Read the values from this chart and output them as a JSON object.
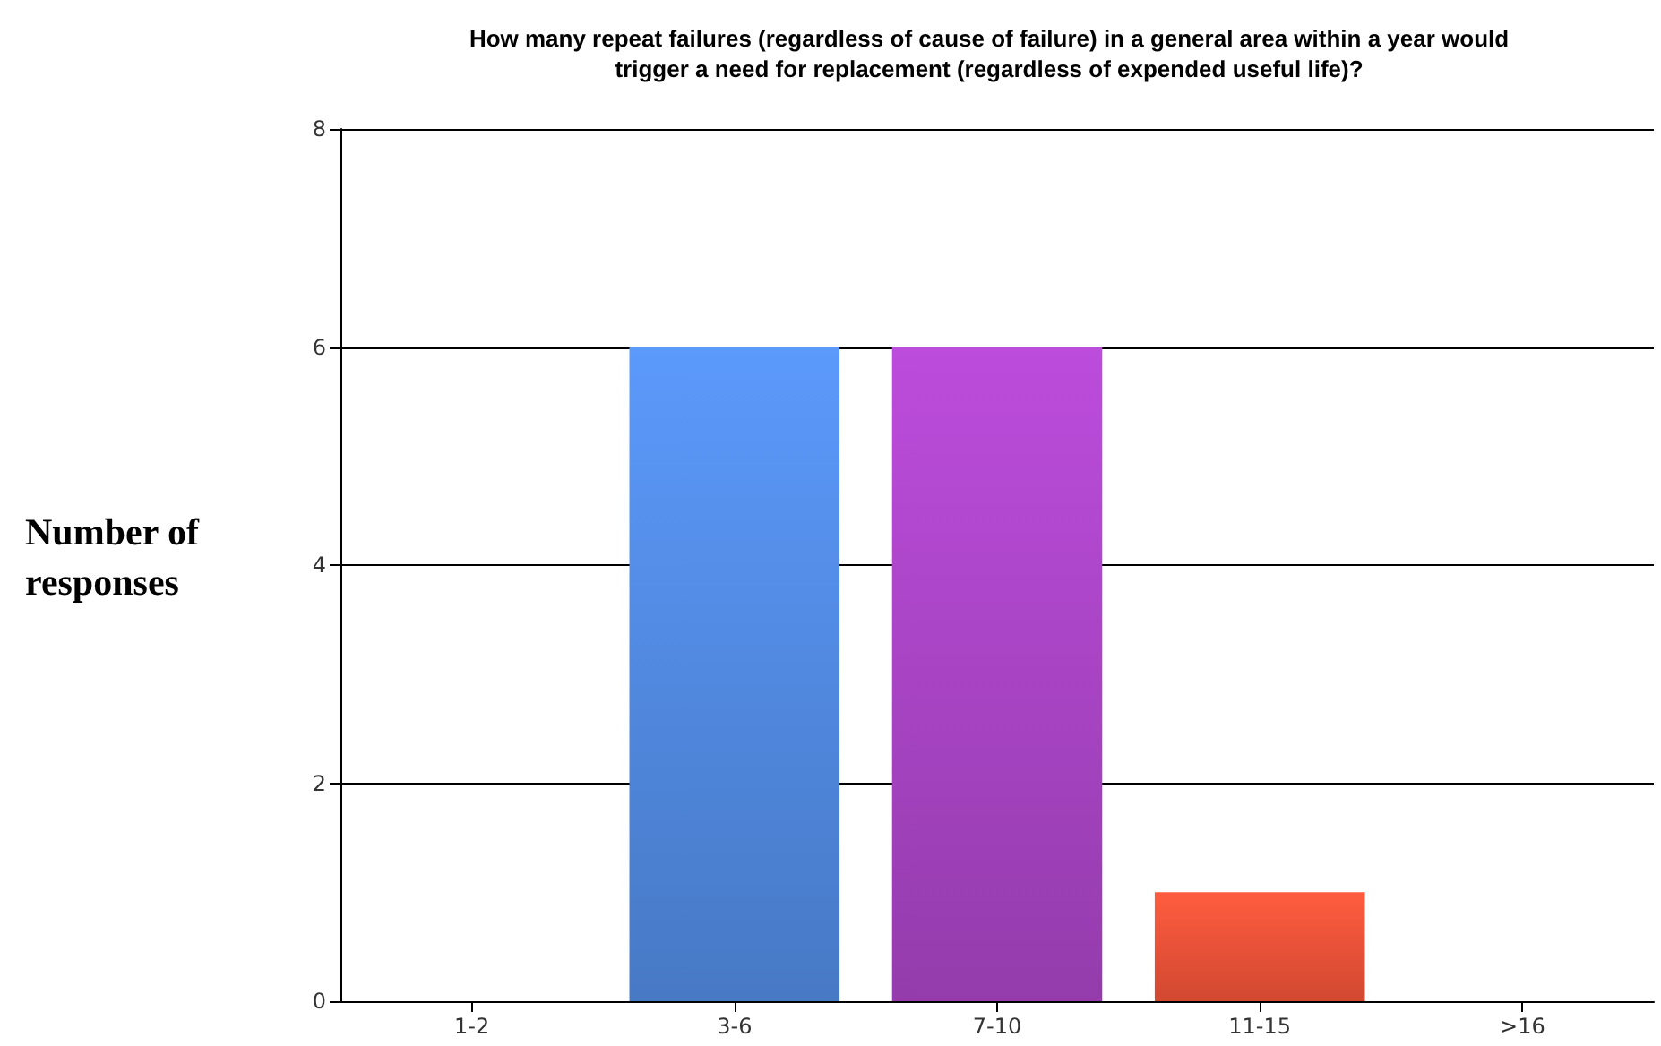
{
  "chart_data": {
    "type": "bar",
    "title": "How many repeat failures (regardless of cause of failure) in a general area within a year would\ntrigger a need for replacement (regardless of expended useful life)?",
    "ylabel": "Number of\nresponses",
    "categories": [
      "1-2",
      "3-6",
      "7-10",
      "11-15",
      ">16"
    ],
    "values": [
      0,
      6,
      6,
      1,
      0
    ],
    "colors": [
      "#5189e0",
      "#5189e0",
      "#a844c4",
      "#ee5238",
      "#ee5238"
    ],
    "ylim": [
      0,
      8
    ],
    "yticks": [
      0,
      2,
      4,
      6,
      8
    ],
    "grid": "y"
  }
}
